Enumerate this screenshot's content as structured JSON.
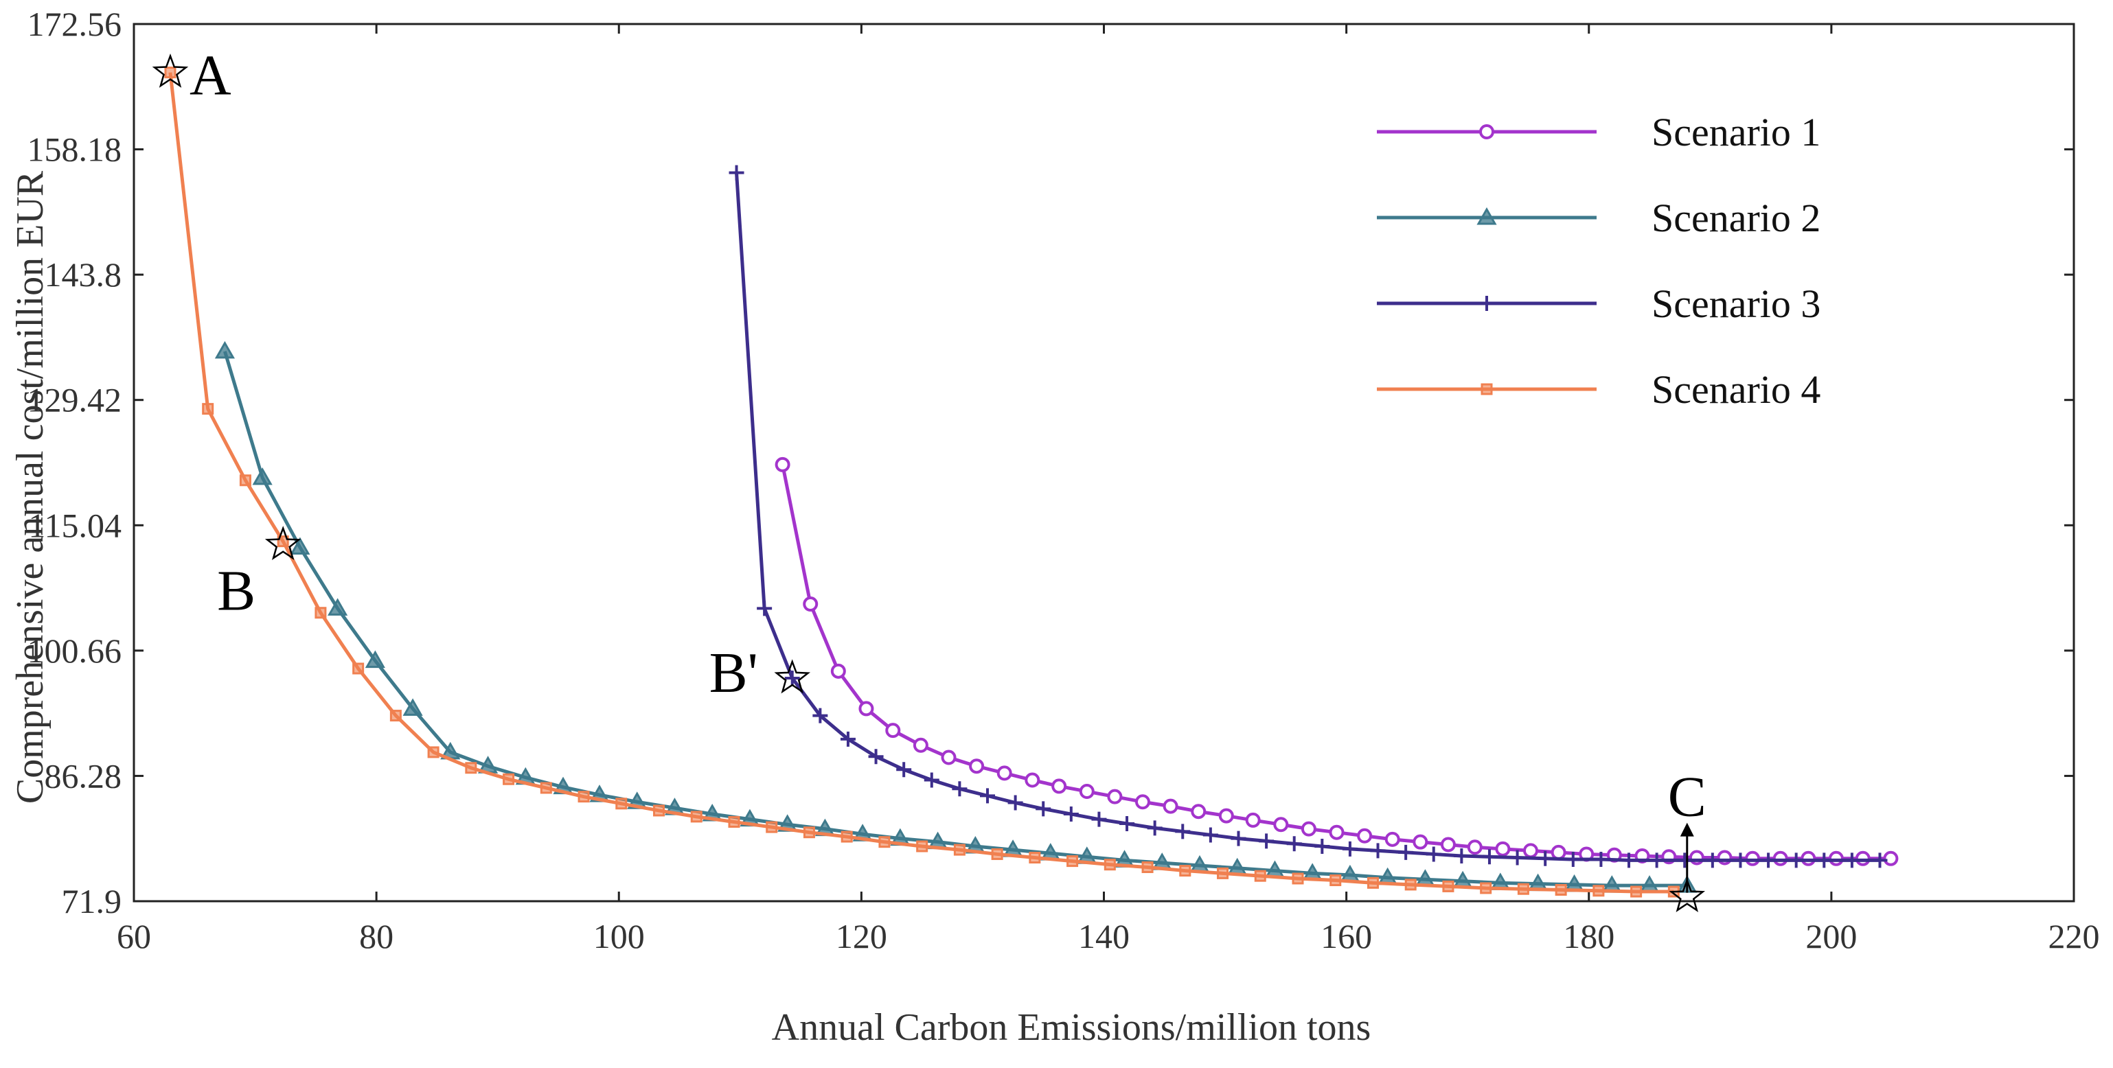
{
  "chart_data": {
    "type": "line",
    "title": "",
    "xlabel": "Annual Carbon Emissions/million tons",
    "ylabel": "Comprehensive annual cost/million EUR",
    "xlim": [
      60,
      220
    ],
    "ylim": [
      71.9,
      172.56
    ],
    "xticks": [
      60,
      80,
      100,
      120,
      140,
      160,
      180,
      200,
      220
    ],
    "yticks": [
      71.9,
      86.28,
      100.66,
      115.04,
      129.42,
      143.8,
      158.18,
      172.56
    ],
    "ytick_labels": [
      "71.9",
      "86.28",
      "100.66",
      "115.04",
      "129.42",
      "143.8",
      "158.18",
      "172.56"
    ],
    "grid": false,
    "legend_position": "top-right",
    "series": [
      {
        "name": "Scenario 1",
        "color": "#A334CC",
        "marker": "circle",
        "x": [
          113.5,
          115.8,
          118.1,
          120.4,
          122.6,
          124.9,
          127.2,
          129.5,
          131.8,
          134.1,
          136.3,
          138.6,
          140.9,
          143.2,
          145.5,
          147.8,
          150.1,
          152.3,
          154.6,
          156.9,
          159.2,
          161.5,
          163.8,
          166.1,
          168.4,
          170.6,
          172.9,
          175.2,
          177.5,
          179.8,
          182.1,
          184.4,
          186.6,
          188.9,
          191.2,
          193.5,
          195.8,
          198.1,
          200.4,
          202.6,
          204.9
        ],
        "y": [
          122.0,
          106.0,
          98.3,
          94.0,
          91.5,
          89.8,
          88.4,
          87.4,
          86.6,
          85.8,
          85.1,
          84.5,
          83.9,
          83.3,
          82.8,
          82.2,
          81.7,
          81.2,
          80.7,
          80.2,
          79.8,
          79.4,
          79.0,
          78.7,
          78.4,
          78.1,
          77.9,
          77.7,
          77.5,
          77.3,
          77.2,
          77.1,
          77.0,
          76.9,
          76.9,
          76.8,
          76.8,
          76.8,
          76.8,
          76.8,
          76.8
        ]
      },
      {
        "name": "Scenario 2",
        "color": "#3E7A8C",
        "marker": "triangle",
        "x": [
          67.5,
          70.6,
          73.7,
          76.8,
          79.9,
          83.0,
          86.1,
          89.2,
          92.3,
          95.4,
          98.4,
          101.5,
          104.6,
          107.7,
          110.8,
          113.9,
          117.0,
          120.1,
          123.2,
          126.3,
          129.4,
          132.5,
          135.6,
          138.6,
          141.7,
          144.8,
          147.9,
          151.0,
          154.1,
          157.2,
          160.3,
          163.4,
          166.5,
          169.6,
          172.7,
          175.8,
          178.8,
          181.9,
          185.0,
          188.1
        ],
        "y": [
          135.0,
          120.5,
          112.5,
          105.5,
          99.5,
          94.0,
          89.0,
          87.4,
          86.1,
          85.0,
          84.1,
          83.3,
          82.6,
          81.9,
          81.3,
          80.7,
          80.2,
          79.6,
          79.1,
          78.7,
          78.2,
          77.8,
          77.4,
          77.0,
          76.6,
          76.3,
          76.0,
          75.7,
          75.4,
          75.1,
          74.9,
          74.6,
          74.4,
          74.2,
          74.0,
          73.9,
          73.8,
          73.7,
          73.7,
          73.7
        ]
      },
      {
        "name": "Scenario 3",
        "color": "#3D2E8C",
        "marker": "plus",
        "x": [
          109.7,
          112.0,
          114.3,
          116.6,
          118.9,
          121.2,
          123.5,
          125.8,
          128.1,
          130.4,
          132.7,
          135.0,
          137.3,
          139.6,
          141.9,
          144.2,
          146.5,
          148.8,
          151.1,
          153.4,
          155.7,
          158.0,
          160.3,
          162.6,
          164.9,
          167.2,
          169.5,
          171.8,
          174.1,
          176.4,
          178.7,
          181.0,
          183.3,
          185.6,
          187.9,
          190.2,
          192.5,
          194.8,
          197.1,
          199.4,
          201.7,
          204.0
        ],
        "y": [
          155.5,
          105.5,
          97.5,
          93.2,
          90.5,
          88.5,
          87.0,
          85.8,
          84.8,
          84.0,
          83.2,
          82.5,
          81.9,
          81.3,
          80.8,
          80.3,
          79.9,
          79.5,
          79.1,
          78.8,
          78.5,
          78.2,
          77.9,
          77.7,
          77.5,
          77.3,
          77.1,
          77.0,
          76.9,
          76.8,
          76.7,
          76.7,
          76.6,
          76.6,
          76.6,
          76.6,
          76.6,
          76.6,
          76.6,
          76.6,
          76.6,
          76.6
        ]
      },
      {
        "name": "Scenario 4",
        "color": "#F08050",
        "marker": "square",
        "x": [
          63.0,
          66.1,
          69.2,
          72.3,
          75.4,
          78.5,
          81.6,
          84.7,
          87.8,
          90.9,
          94.0,
          97.1,
          100.2,
          103.3,
          106.4,
          109.5,
          112.6,
          115.7,
          118.8,
          121.9,
          125.0,
          128.1,
          131.2,
          134.3,
          137.4,
          140.5,
          143.6,
          146.7,
          149.8,
          152.9,
          156.0,
          159.1,
          162.2,
          165.3,
          168.4,
          171.5,
          174.6,
          177.7,
          180.8,
          183.9,
          187.0
        ],
        "y": [
          167.0,
          128.4,
          120.2,
          113.2,
          105.0,
          98.6,
          93.2,
          89.0,
          87.2,
          85.9,
          84.9,
          83.9,
          83.1,
          82.3,
          81.6,
          81.0,
          80.4,
          79.8,
          79.3,
          78.7,
          78.2,
          77.8,
          77.3,
          76.9,
          76.5,
          76.1,
          75.8,
          75.4,
          75.1,
          74.8,
          74.5,
          74.3,
          74.0,
          73.8,
          73.6,
          73.4,
          73.3,
          73.2,
          73.1,
          73.0,
          73.0
        ]
      }
    ],
    "annotations": [
      {
        "label": "A",
        "x": 63.0,
        "y": 167.0,
        "label_side": "right"
      },
      {
        "label": "B",
        "x": 72.3,
        "y": 112.8,
        "label_side": "below-left"
      },
      {
        "label": "B'",
        "x": 114.3,
        "y": 97.5,
        "label_side": "left"
      },
      {
        "label": "C",
        "x": 188.1,
        "y": 72.4,
        "label_side": "above",
        "arrow": true
      }
    ]
  }
}
